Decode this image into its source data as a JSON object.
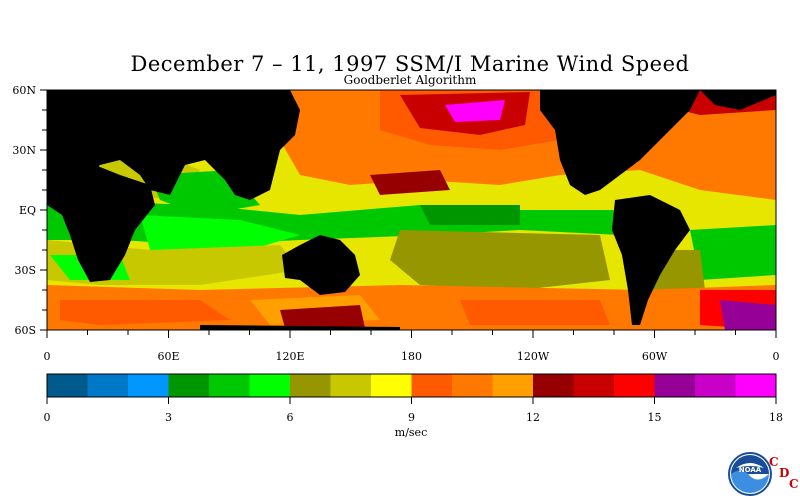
{
  "title": "December 7 – 11, 1997 SSM/I Marine Wind Speed",
  "subtitle": "Goodberlet Algorithm",
  "lat_labels": [
    "60N",
    "30N",
    "EQ",
    "30S",
    "60S"
  ],
  "lon_labels": [
    "0",
    "60E",
    "120E",
    "180",
    "120W",
    "60W",
    "0"
  ],
  "colorbar": {
    "tick_labels": [
      "0",
      "3",
      "6",
      "9",
      "12",
      "15",
      "18"
    ],
    "units": "m/sec",
    "colors": [
      "#005a8c",
      "#0078c8",
      "#0096ff",
      "#009600",
      "#00c800",
      "#00ff00",
      "#969600",
      "#c8c800",
      "#ffff00",
      "#ff5a00",
      "#ff7800",
      "#ffa000",
      "#960000",
      "#c80000",
      "#ff0000",
      "#960096",
      "#c800c8",
      "#ff00ff"
    ]
  },
  "land_color": "#000000",
  "logo": {
    "emblem": "NOAA",
    "letters": [
      "C",
      "D",
      "C"
    ],
    "icon": "noaa-logo-icon"
  }
}
